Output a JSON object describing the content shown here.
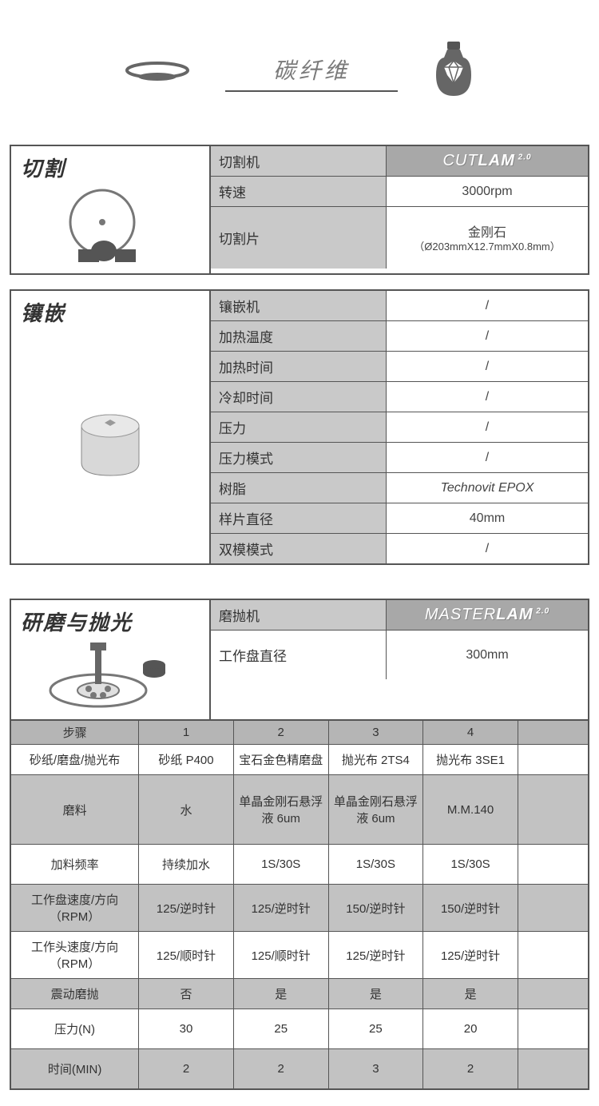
{
  "header": {
    "title": "碳纤维"
  },
  "cutting": {
    "label": "切割",
    "rows": [
      {
        "k": "切割机",
        "v_brand": {
          "pre": "CUT",
          "main": "LAM",
          "suf": "2.0"
        }
      },
      {
        "k": "转速",
        "v": "3000rpm"
      },
      {
        "k": "切割片",
        "v": "金刚石",
        "v2": "（Ø203mmX12.7mmX0.8mm）"
      }
    ]
  },
  "mounting": {
    "label": "镶嵌",
    "rows": [
      {
        "k": "镶嵌机",
        "v": "/"
      },
      {
        "k": "加热温度",
        "v": "/"
      },
      {
        "k": "加热时间",
        "v": "/"
      },
      {
        "k": "冷却时间",
        "v": "/"
      },
      {
        "k": "压力",
        "v": "/"
      },
      {
        "k": "压力模式",
        "v": "/"
      },
      {
        "k": "树脂",
        "v": "Technovit EPOX",
        "italic": true
      },
      {
        "k": "样片直径",
        "v": "40mm"
      },
      {
        "k": "双模模式",
        "v": "/"
      }
    ]
  },
  "polishing": {
    "label": "研磨与抛光",
    "head_rows": [
      {
        "k": "磨抛机",
        "v_brand": {
          "pre": "MASTER",
          "main": "LAM",
          "suf": "2.0"
        }
      },
      {
        "k": "工作盘直径",
        "v": "300mm"
      }
    ],
    "steps_header": {
      "lbl": "步骤",
      "cols": [
        "1",
        "2",
        "3",
        "4",
        ""
      ]
    },
    "steps": [
      {
        "lbl": "砂纸/磨盘/抛光布",
        "bg": "white",
        "vals": [
          "砂纸 P400",
          "宝石金色精磨盘",
          "抛光布 2TS4",
          "抛光布 3SE1",
          ""
        ]
      },
      {
        "lbl": "磨料",
        "bg": "grey",
        "tall": true,
        "vals": [
          "水",
          "单晶金刚石悬浮液 6um",
          "单晶金刚石悬浮液 6um",
          "M.M.140",
          ""
        ]
      },
      {
        "lbl": "加料频率",
        "bg": "white",
        "med": true,
        "vals": [
          "持续加水",
          "1S/30S",
          "1S/30S",
          "1S/30S",
          ""
        ]
      },
      {
        "lbl": "工作盘速度/方向（RPM）",
        "bg": "grey",
        "vals": [
          "125/逆时针",
          "125/逆时针",
          "150/逆时针",
          "150/逆时针",
          ""
        ]
      },
      {
        "lbl": "工作头速度/方向（RPM）",
        "bg": "white",
        "vals": [
          "125/顺时针",
          "125/顺时针",
          "125/逆时针",
          "125/逆时针",
          ""
        ]
      },
      {
        "lbl": "震动磨抛",
        "bg": "grey",
        "vals": [
          "否",
          "是",
          "是",
          "是",
          ""
        ]
      },
      {
        "lbl": "压力(N)",
        "bg": "white",
        "med": true,
        "vals": [
          "30",
          "25",
          "25",
          "20",
          ""
        ]
      },
      {
        "lbl": "时间(MIN)",
        "bg": "grey",
        "med": true,
        "vals": [
          "2",
          "2",
          "3",
          "2",
          ""
        ]
      }
    ]
  }
}
